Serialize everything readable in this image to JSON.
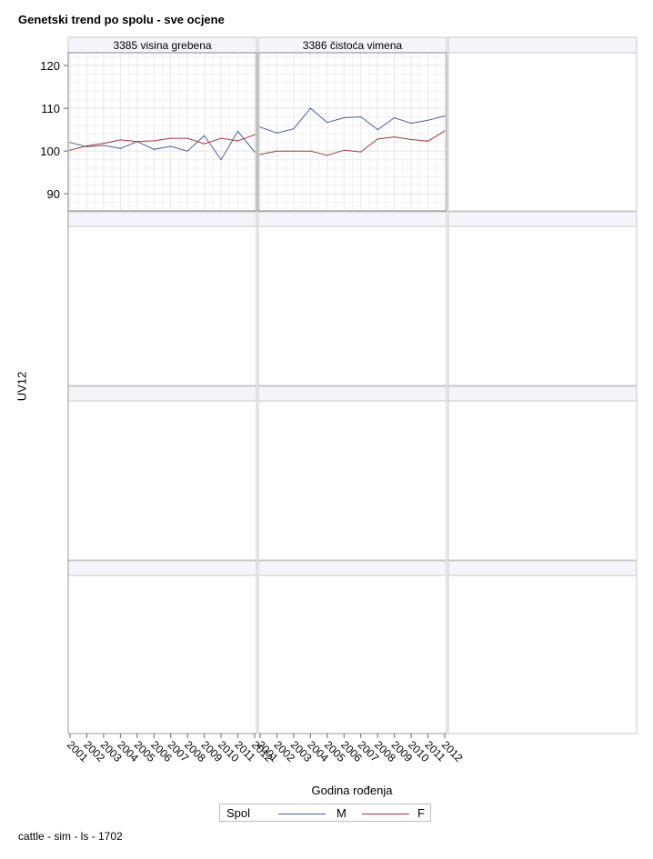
{
  "title": "Genetski trend po spolu - sve ocjene",
  "footnote": "cattle - sim - ls - 1702",
  "chart_data": {
    "type": "line",
    "ylabel": "UV12",
    "xlabel": "Godina rođenja",
    "ylim": [
      86,
      123
    ],
    "yticks": [
      90,
      100,
      110,
      120
    ],
    "grid": true,
    "x": [
      "2001",
      "2002",
      "2003",
      "2004",
      "2005",
      "2006",
      "2007",
      "2008",
      "2009",
      "2010",
      "2011",
      "2012"
    ],
    "legend": {
      "title": "Spol",
      "position": "bottom-center"
    },
    "series_style": {
      "M": "#4a5f9a",
      "F": "#a33a3a"
    },
    "panels": [
      {
        "label": "3385 visina grebena",
        "series": [
          {
            "name": "M",
            "values": [
              102.0,
              101.0,
              101.3,
              100.6,
              102.2,
              100.4,
              101.1,
              100.0,
              103.6,
              98.0,
              104.6,
              99.8
            ]
          },
          {
            "name": "F",
            "values": [
              100.2,
              101.2,
              101.8,
              102.6,
              102.2,
              102.4,
              103.0,
              103.0,
              101.7,
              103.0,
              102.4,
              103.8
            ]
          }
        ]
      },
      {
        "label": "3386 čistoća vimena",
        "series": [
          {
            "name": "M",
            "values": [
              105.6,
              104.2,
              105.2,
              110.0,
              106.7,
              107.8,
              108.0,
              105.0,
              107.8,
              106.5,
              107.2,
              108.2
            ]
          },
          {
            "name": "F",
            "values": [
              99.2,
              100.0,
              100.0,
              100.0,
              99.0,
              100.2,
              99.8,
              102.8,
              103.3,
              102.7,
              102.3,
              104.7
            ]
          }
        ]
      }
    ]
  }
}
